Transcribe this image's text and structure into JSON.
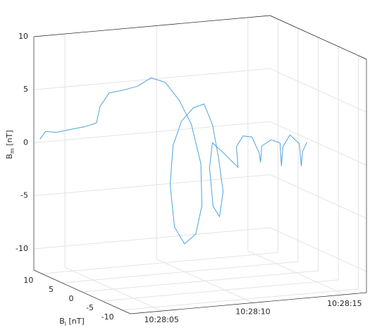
{
  "chart_data": {
    "type": "line3d",
    "xlim": [
      37683.3,
      37696.2
    ],
    "xticks": [
      {
        "value": 37685,
        "label": "10:28:05"
      },
      {
        "value": 37690,
        "label": "10:28:10"
      },
      {
        "value": 37695,
        "label": "10:28:15"
      }
    ],
    "ylim": [
      -12,
      12
    ],
    "yticks": [
      -10,
      -5,
      0,
      5,
      10
    ],
    "ylabel": {
      "symbol": "B",
      "subscript": "l",
      "unit": "[nT]"
    },
    "zlim": [
      -12,
      10
    ],
    "zticks": [
      -10,
      -5,
      0,
      5,
      10
    ],
    "zlabel": {
      "symbol": "B",
      "subscript": "m",
      "unit": "[nT]"
    },
    "grid": true,
    "series": [
      {
        "color": "#4fa3dc",
        "x": [
          37683.3,
          37683.7,
          37684.2,
          37684.8,
          37685.3,
          37685.8,
          37686.1,
          37686.4,
          37686.8,
          37687.2,
          37687.6,
          37687.9,
          37688.2,
          37688.5,
          37688.8,
          37689.1,
          37689.4,
          37689.6,
          37689.8,
          37690.0,
          37690.2,
          37690.4,
          37690.6,
          37690.8,
          37691.0,
          37691.2,
          37691.4,
          37691.6,
          37691.8,
          37692.0,
          37692.2,
          37692.4,
          37692.7,
          37692.9,
          37693.1,
          37693.3,
          37693.5,
          37693.6,
          37693.8,
          37694.0,
          37694.2,
          37694.3,
          37694.5,
          37694.7,
          37694.9,
          37695.1,
          37695.3,
          37695.5
        ],
        "y": [
          10.5,
          10.9,
          10.5,
          9.8,
          8.5,
          7.8,
          8.3,
          7.4,
          5.7,
          4.0,
          2.4,
          0.2,
          -1.9,
          -3.5,
          -4.5,
          -3.4,
          -0.5,
          3.2,
          6.6,
          8.6,
          8.8,
          7.6,
          5.5,
          3.8,
          2.6,
          2.1,
          1.8,
          3.6,
          6.1,
          7.9,
          8.1,
          6.2,
          4.0,
          5.3,
          4.6,
          3.3,
          2.4,
          2.5,
          3.1,
          1.7,
          0.4,
          0.5,
          1.0,
          0.2,
          -1.2,
          -0.8,
          -0.2,
          -0.4
        ],
        "z": [
          0.6,
          1.2,
          1.1,
          1.4,
          1.8,
          2.2,
          3.6,
          5.0,
          5.5,
          6.1,
          7.1,
          7.0,
          5.6,
          3.6,
          0.0,
          -4.2,
          -7.4,
          -9.0,
          -8.0,
          -4.4,
          -0.8,
          1.7,
          3.3,
          3.9,
          2.1,
          -0.8,
          -4.1,
          -6.8,
          -6.3,
          -3.0,
          -0.7,
          -1.4,
          -2.4,
          -0.7,
          0.4,
          0.5,
          -0.9,
          -1.8,
          -0.4,
          0.4,
          0.3,
          -1.9,
          -0.2,
          1.0,
          0.4,
          -1.8,
          -0.6,
          0.3
        ]
      }
    ]
  }
}
